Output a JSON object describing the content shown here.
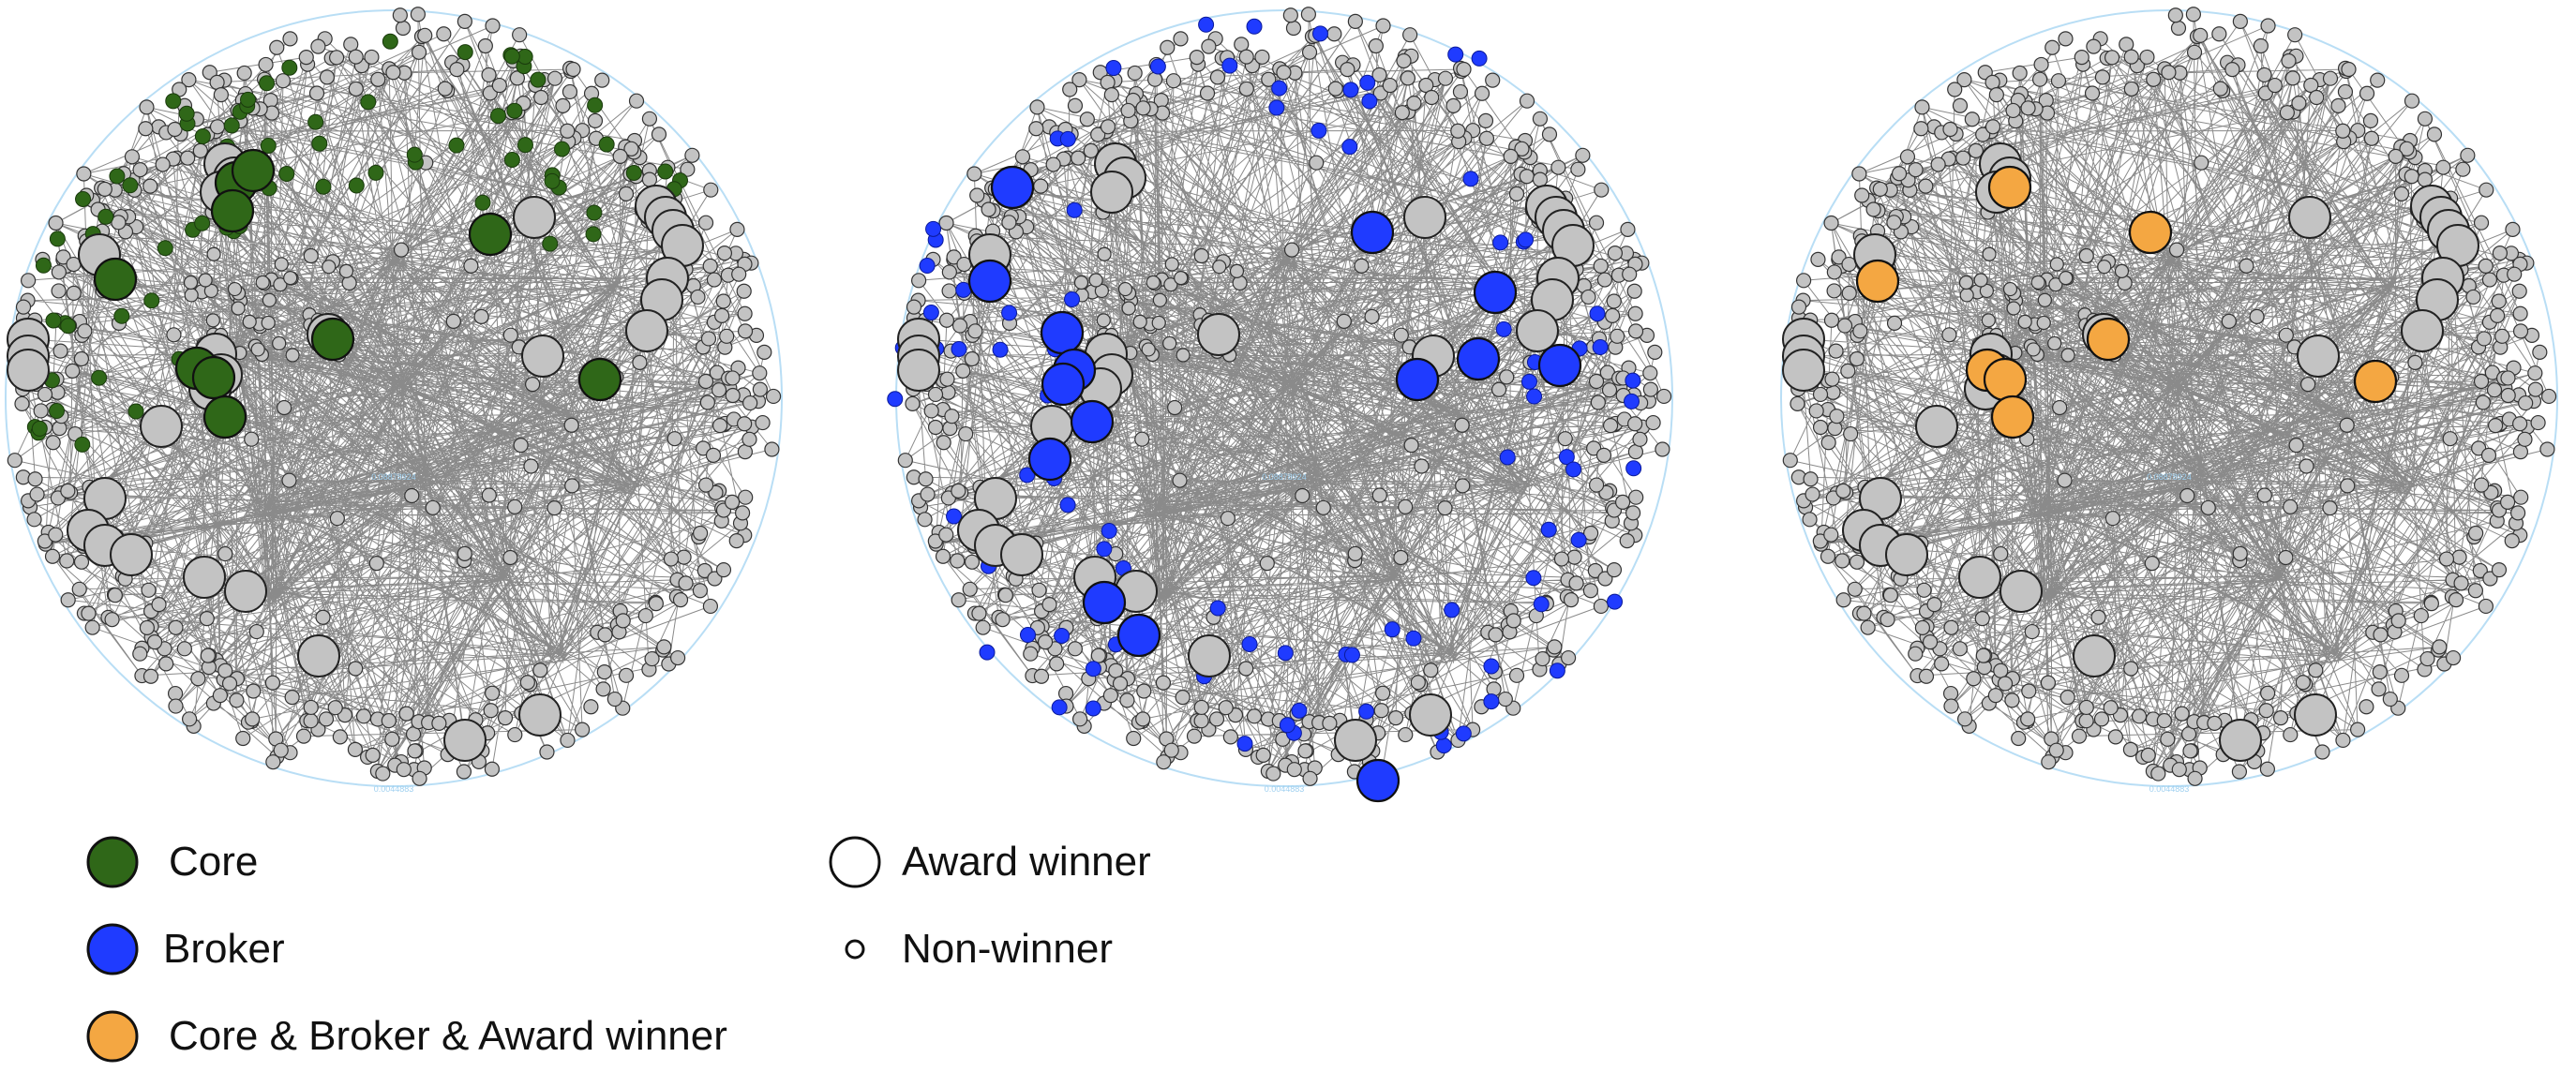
{
  "colors": {
    "core": "#2f6718",
    "broker": "#1f3bff",
    "combo": "#f4a742",
    "gray_node": "#c3c3c3",
    "edge": "#2a2a2a",
    "ring": "#b9def5",
    "scale_text": "#9fd0f0"
  },
  "networks": [
    {
      "id": "core-network",
      "highlight": "core"
    },
    {
      "id": "broker-network",
      "highlight": "broker"
    },
    {
      "id": "combined-network",
      "highlight": "combo"
    }
  ],
  "scale_labels": [
    "0.08878924",
    "0.0044883"
  ],
  "legend": {
    "core": "Core",
    "broker": "Broker",
    "combo": "Core & Broker & Award winner",
    "award_winner": "Award winner",
    "non_winner": "Non-winner"
  }
}
